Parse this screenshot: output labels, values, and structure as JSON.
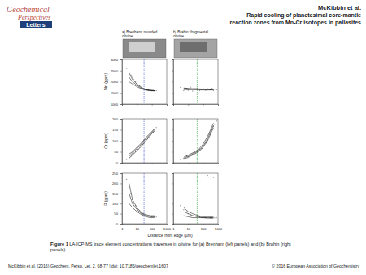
{
  "page": {
    "logo": [
      "Geochemical",
      "Perspectives",
      "Letters"
    ],
    "header": [
      "McKibbin et al.",
      "Rapid cooling of planetesimal core-mantle",
      "reaction zones from Mn-Cr isotopes in pallasites"
    ],
    "x_label": "Distance from edge (µm)",
    "caption_label": "Figure 1",
    "caption_lines": [
      " LA-ICP-MS trace element concentrations traverses in olivine for (a) Brenham (left panels) and (b) Brahin (right",
      "panels)."
    ],
    "footer_left": "McKibbin et al. (2016) Geochem. Persp. Let. 2, 68-77 | doi: 10.7185/geochemlet.1607",
    "footer_right": "© 2016 European Association of Geochemistry"
  },
  "chart_data": [
    {
      "type": "line",
      "title": [
        "a) Brenham: rounded",
        "olivine"
      ],
      "y_label": "Mn (ppm)",
      "log": "x",
      "tick_labels": "y",
      "xlim": [
        1,
        1000
      ],
      "xticks": [
        1,
        10,
        100,
        1000
      ],
      "ylim": [
        1000,
        3000
      ],
      "yticks": [
        1000,
        1500,
        2000,
        2500,
        3000
      ],
      "annotations": [
        {
          "x": 30,
          "color": "#3a4fc4",
          "line_style": "dashed"
        }
      ],
      "series": [
        {
          "type": "scatter",
          "color": "#9a9a9a",
          "marker": "circle",
          "x": [
            2,
            3,
            4,
            5,
            6,
            8,
            10,
            12,
            15,
            20,
            25,
            30,
            40,
            50,
            60,
            80,
            100,
            120,
            150,
            200
          ],
          "values": [
            2600,
            2450,
            2300,
            2200,
            2100,
            2000,
            1950,
            1850,
            1800,
            1750,
            1700,
            1680,
            1650,
            1640,
            1620,
            1620,
            1600,
            1610,
            1590,
            1600
          ]
        },
        {
          "type": "line",
          "color": "#000000",
          "line_style": "solid",
          "x": [
            3,
            5,
            10,
            20,
            40,
            80,
            150
          ],
          "values": [
            2400,
            2100,
            1900,
            1750,
            1650,
            1620,
            1600
          ]
        },
        {
          "type": "line",
          "color": "#000000",
          "line_style": "solid",
          "x": [
            3,
            5,
            10,
            20,
            40,
            80,
            150
          ],
          "values": [
            2200,
            2000,
            1850,
            1700,
            1640,
            1610,
            1600
          ]
        },
        {
          "type": "line",
          "color": "#000000",
          "line_style": "solid",
          "x": [
            3,
            5,
            10,
            20,
            40,
            80,
            150
          ],
          "values": [
            2000,
            1900,
            1780,
            1680,
            1620,
            1600,
            1590
          ]
        }
      ]
    },
    {
      "type": "line",
      "title": [
        "b) Brahin: fragmental",
        "olivine"
      ],
      "log": "x",
      "tick_labels": false,
      "xlim": [
        1,
        1000
      ],
      "xticks": [
        1,
        10,
        100,
        1000
      ],
      "ylim": [
        1000,
        3000
      ],
      "yticks": [
        1000,
        1500,
        2000,
        2500,
        3000
      ],
      "annotations": [
        {
          "x": 40,
          "color": "#2a9d3a",
          "line_style": "dashed"
        }
      ],
      "series": [
        {
          "type": "scatter",
          "color": "#9a9a9a",
          "marker": "circle",
          "x": [
            3,
            5,
            8,
            10,
            15,
            20,
            30,
            40,
            60,
            80,
            100,
            150,
            200,
            300,
            400,
            500,
            600,
            800
          ],
          "values": [
            1750,
            1600,
            1700,
            1620,
            1760,
            1580,
            1680,
            1720,
            1600,
            1650,
            1700,
            1620,
            1680,
            1640,
            1700,
            1610,
            1660,
            1640
          ]
        },
        {
          "type": "line",
          "color": "#000000",
          "line_style": "solid",
          "x": [
            5,
            10,
            20,
            50,
            100,
            200,
            500
          ],
          "values": [
            1700,
            1680,
            1670,
            1660,
            1650,
            1650,
            1650
          ]
        },
        {
          "type": "line",
          "color": "#000000",
          "line_style": "solid",
          "x": [
            5,
            10,
            20,
            50,
            100,
            200,
            500
          ],
          "values": [
            1650,
            1640,
            1640,
            1640,
            1630,
            1630,
            1630
          ]
        },
        {
          "type": "line",
          "color": "#000000",
          "line_style": "solid",
          "x": [
            5,
            10,
            20,
            50,
            100,
            200,
            500
          ],
          "values": [
            1720,
            1700,
            1690,
            1680,
            1670,
            1660,
            1660
          ]
        }
      ]
    },
    {
      "type": "line",
      "y_label": "Cr (ppm)",
      "log": "x",
      "tick_labels": "y",
      "xlim": [
        1,
        1000
      ],
      "xticks": [
        1,
        10,
        100,
        1000
      ],
      "ylim": [
        0,
        200
      ],
      "yticks": [
        0,
        50,
        100,
        150,
        200
      ],
      "annotations": [
        {
          "x": 30,
          "color": "#3a4fc4",
          "line_style": "dashed"
        }
      ],
      "series": [
        {
          "type": "scatter",
          "color": "#9a9a9a",
          "marker": "circle",
          "x": [
            2,
            3,
            4,
            5,
            6,
            8,
            10,
            12,
            15,
            20,
            25,
            30,
            40,
            50,
            60,
            80,
            100,
            120,
            150,
            200
          ],
          "values": [
            15,
            25,
            30,
            40,
            45,
            50,
            60,
            62,
            70,
            78,
            85,
            90,
            100,
            108,
            115,
            125,
            135,
            140,
            150,
            160
          ]
        },
        {
          "type": "line",
          "color": "#000000",
          "line_style": "solid",
          "x": [
            3,
            5,
            10,
            20,
            40,
            80,
            150
          ],
          "values": [
            30,
            45,
            65,
            85,
            110,
            130,
            150
          ]
        },
        {
          "type": "line",
          "color": "#000000",
          "line_style": "solid",
          "x": [
            3,
            5,
            10,
            20,
            40,
            80,
            150
          ],
          "values": [
            20,
            35,
            55,
            75,
            100,
            125,
            145
          ]
        },
        {
          "type": "line",
          "color": "#000000",
          "line_style": "solid",
          "x": [
            3,
            5,
            10,
            20,
            40,
            80,
            150
          ],
          "values": [
            40,
            50,
            70,
            90,
            115,
            135,
            155
          ]
        }
      ]
    },
    {
      "type": "line",
      "log": "x",
      "tick_labels": false,
      "xlim": [
        1,
        1000
      ],
      "xticks": [
        1,
        10,
        100,
        1000
      ],
      "ylim": [
        0,
        200
      ],
      "yticks": [
        0,
        50,
        100,
        150,
        200
      ],
      "annotations": [
        {
          "x": 40,
          "color": "#2a9d3a",
          "line_style": "dashed"
        }
      ],
      "series": [
        {
          "type": "scatter",
          "color": "#9a9a9a",
          "marker": "circle",
          "x": [
            3,
            5,
            8,
            10,
            15,
            20,
            30,
            40,
            60,
            80,
            100,
            150,
            200,
            300,
            400,
            500,
            600,
            800
          ],
          "values": [
            15,
            20,
            30,
            28,
            35,
            40,
            45,
            50,
            60,
            65,
            75,
            90,
            105,
            130,
            150,
            165,
            175,
            190
          ]
        },
        {
          "type": "line",
          "color": "#000000",
          "line_style": "solid",
          "x": [
            5,
            10,
            20,
            50,
            100,
            200,
            500
          ],
          "values": [
            20,
            30,
            40,
            55,
            75,
            110,
            170
          ]
        },
        {
          "type": "line",
          "color": "#000000",
          "line_style": "solid",
          "x": [
            5,
            10,
            20,
            50,
            100,
            200,
            500
          ],
          "values": [
            15,
            25,
            35,
            50,
            70,
            100,
            160
          ]
        },
        {
          "type": "line",
          "color": "#000000",
          "line_style": "solid",
          "x": [
            5,
            10,
            20,
            50,
            100,
            200,
            500
          ],
          "values": [
            25,
            35,
            45,
            60,
            85,
            120,
            180
          ]
        }
      ]
    },
    {
      "type": "line",
      "y_label": "P (ppm)",
      "log": "x",
      "tick_labels": true,
      "xlim": [
        1,
        1000
      ],
      "xticks": [
        1,
        10,
        100,
        1000
      ],
      "ylim": [
        0,
        250
      ],
      "yticks": [
        0,
        50,
        100,
        150,
        200,
        250
      ],
      "annotations": [
        {
          "x": 30,
          "color": "#3a4fc4",
          "line_style": "dashed"
        }
      ],
      "series": [
        {
          "type": "scatter",
          "color": "#9a9a9a",
          "marker": "circle",
          "x": [
            2,
            3,
            4,
            5,
            6,
            8,
            10,
            12,
            15,
            20,
            25,
            30,
            40,
            50,
            60,
            80,
            100,
            120,
            150,
            200
          ],
          "values": [
            220,
            180,
            150,
            120,
            100,
            90,
            80,
            70,
            65,
            55,
            50,
            45,
            42,
            40,
            38,
            36,
            35,
            35,
            34,
            33
          ]
        },
        {
          "type": "line",
          "color": "#000000",
          "line_style": "solid",
          "x": [
            3,
            5,
            10,
            20,
            40,
            80,
            150
          ],
          "values": [
            150,
            100,
            70,
            50,
            40,
            35,
            35
          ]
        },
        {
          "type": "line",
          "color": "#000000",
          "line_style": "solid",
          "x": [
            3,
            5,
            10,
            20,
            40,
            80,
            150
          ],
          "values": [
            100,
            80,
            60,
            45,
            35,
            30,
            30
          ]
        },
        {
          "type": "line",
          "color": "#000000",
          "line_style": "solid",
          "x": [
            3,
            5,
            10,
            20,
            40,
            80,
            150
          ],
          "values": [
            200,
            120,
            80,
            55,
            45,
            40,
            40
          ]
        }
      ]
    },
    {
      "type": "line",
      "log": "x",
      "tick_labels": "x",
      "xlim": [
        1,
        1000
      ],
      "xticks": [
        1,
        10,
        100,
        1000
      ],
      "ylim": [
        0,
        250
      ],
      "yticks": [
        0,
        50,
        100,
        150,
        200,
        250
      ],
      "annotations": [
        {
          "x": 40,
          "color": "#2a9d3a",
          "line_style": "dashed"
        }
      ],
      "series": [
        {
          "type": "scatter",
          "color": "#9a9a9a",
          "marker": "circle",
          "x": [
            3,
            5,
            8,
            10,
            15,
            20,
            30,
            40,
            60,
            80,
            100,
            150,
            200,
            300,
            400,
            500,
            600,
            800
          ],
          "values": [
            90,
            70,
            60,
            50,
            45,
            40,
            38,
            35,
            33,
            30,
            32,
            30,
            240,
            30,
            28,
            230,
            29,
            30
          ]
        },
        {
          "type": "line",
          "color": "#000000",
          "line_style": "solid",
          "x": [
            5,
            10,
            20,
            50,
            100,
            200,
            500
          ],
          "values": [
            60,
            50,
            40,
            35,
            30,
            30,
            30
          ]
        },
        {
          "type": "line",
          "color": "#000000",
          "line_style": "solid",
          "x": [
            5,
            10,
            20,
            50,
            100,
            200,
            500
          ],
          "values": [
            40,
            35,
            30,
            30,
            30,
            28,
            28
          ]
        },
        {
          "type": "line",
          "color": "#000000",
          "line_style": "solid",
          "x": [
            5,
            10,
            20,
            50,
            100,
            200,
            500
          ],
          "values": [
            80,
            60,
            50,
            40,
            35,
            35,
            35
          ]
        }
      ]
    }
  ]
}
